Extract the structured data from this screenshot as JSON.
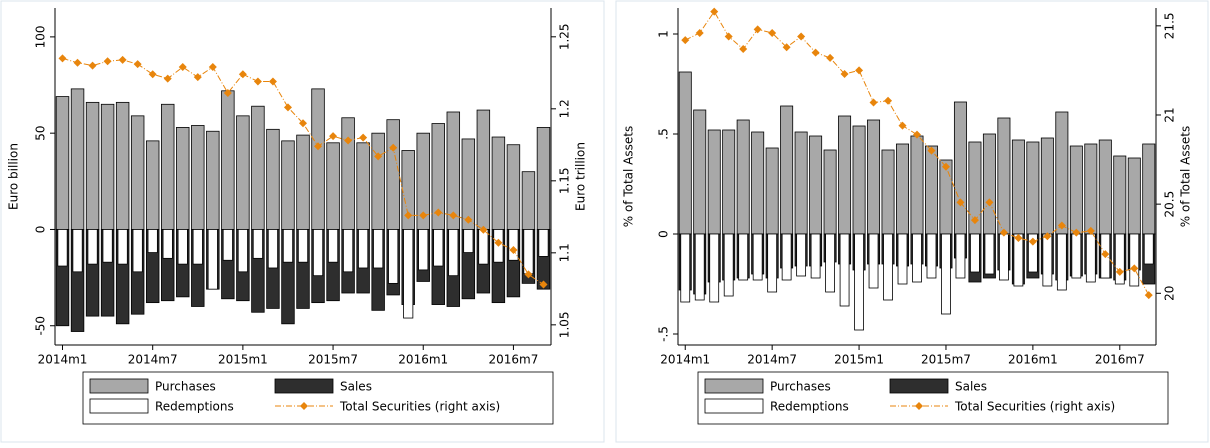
{
  "chart_data": [
    {
      "type": "bar-line",
      "categories": [
        "2014m1",
        null,
        null,
        null,
        null,
        null,
        "2014m7",
        null,
        null,
        null,
        null,
        null,
        "2015m1",
        null,
        null,
        null,
        null,
        null,
        "2015m7",
        null,
        null,
        null,
        null,
        null,
        "2016m1",
        null,
        null,
        null,
        null,
        null,
        "2016m7",
        null,
        null
      ],
      "ylabel": "Euro billion",
      "y2label": "Euro trillion",
      "ylim": [
        -60,
        115
      ],
      "yticks": [
        -50,
        0,
        50,
        100
      ],
      "y2lim": [
        1.036,
        1.27
      ],
      "y2ticks": [
        1.05,
        1.1,
        1.15,
        1.2,
        1.25
      ],
      "series": [
        {
          "name": "Purchases",
          "color": "#a8a8a8",
          "values": [
            69,
            73,
            66,
            65,
            66,
            59,
            46,
            65,
            53,
            54,
            51,
            72,
            59,
            64,
            52,
            46,
            49,
            73,
            45,
            58,
            45,
            50,
            57,
            41,
            50,
            55,
            61,
            47,
            62,
            48,
            44,
            30,
            53
          ]
        },
        {
          "name": "Sales",
          "color": "#2e2e2e",
          "values": [
            -50,
            -53,
            -45,
            -45,
            -49,
            -44,
            -38,
            -37,
            -35,
            -40,
            -31,
            -36,
            -37,
            -43,
            -41,
            -49,
            -41,
            -38,
            -37,
            -33,
            -33,
            -42,
            -34,
            -39,
            -27,
            -39,
            -40,
            -36,
            -33,
            -38,
            -35,
            -28,
            -31
          ]
        },
        {
          "name": "Redemptions",
          "color": "#ffffff",
          "values": [
            -19,
            -22,
            -18,
            -17,
            -18,
            -22,
            -12,
            -15,
            -18,
            -18,
            -31,
            -16,
            -22,
            -15,
            -20,
            -17,
            -17,
            -24,
            -17,
            -22,
            -20,
            -20,
            -28,
            -46,
            -21,
            -19,
            -24,
            -12,
            -18,
            -17,
            -16,
            -23,
            -14
          ]
        },
        {
          "name": "Total Securities (right axis)",
          "color": "#e8850c",
          "axis": "y2",
          "values": [
            1.235,
            1.232,
            1.23,
            1.233,
            1.234,
            1.231,
            1.224,
            1.221,
            1.229,
            1.222,
            1.229,
            1.211,
            1.224,
            1.219,
            1.219,
            1.201,
            1.19,
            1.174,
            1.181,
            1.178,
            1.18,
            1.167,
            1.173,
            1.126,
            1.126,
            1.128,
            1.126,
            1.123,
            1.116,
            1.107,
            1.102,
            1.085,
            1.078
          ]
        }
      ]
    },
    {
      "type": "bar-line",
      "categories": [
        "2014m1",
        null,
        null,
        null,
        null,
        null,
        "2014m7",
        null,
        null,
        null,
        null,
        null,
        "2015m1",
        null,
        null,
        null,
        null,
        null,
        "2015m7",
        null,
        null,
        null,
        null,
        null,
        "2016m1",
        null,
        null,
        null,
        null,
        null,
        "2016m7",
        null,
        null
      ],
      "ylabel": "% of Total Assets",
      "y2label": "% of Total Assets",
      "ylim": [
        -0.555,
        1.13
      ],
      "yticks": [
        {
          "value": -0.5,
          "label": "-.5"
        },
        0,
        {
          "value": 0.5,
          "label": ".5"
        },
        1
      ],
      "y2lim": [
        19.71,
        21.6
      ],
      "y2ticks": [
        20,
        20.5,
        21,
        21.5
      ],
      "series": [
        {
          "name": "Purchases",
          "color": "#a8a8a8",
          "values": [
            0.81,
            0.62,
            0.52,
            0.52,
            0.57,
            0.51,
            0.43,
            0.64,
            0.51,
            0.49,
            0.42,
            0.59,
            0.54,
            0.57,
            0.42,
            0.45,
            0.49,
            0.44,
            0.37,
            0.66,
            0.46,
            0.5,
            0.58,
            0.47,
            0.46,
            0.48,
            0.61,
            0.44,
            0.45,
            0.47,
            0.39,
            0.38,
            0.45
          ]
        },
        {
          "name": "Sales",
          "color": "#2e2e2e",
          "values": [
            -0.28,
            -0.3,
            -0.24,
            -0.23,
            -0.22,
            -0.2,
            -0.22,
            -0.17,
            -0.16,
            -0.16,
            -0.14,
            -0.15,
            -0.18,
            -0.15,
            -0.15,
            -0.16,
            -0.15,
            -0.16,
            -0.17,
            -0.12,
            -0.24,
            -0.22,
            -0.18,
            -0.25,
            -0.22,
            -0.2,
            -0.23,
            -0.21,
            -0.2,
            -0.22,
            -0.23,
            -0.18,
            -0.25
          ]
        },
        {
          "name": "Redemptions",
          "color": "#ffffff",
          "values": [
            -0.34,
            -0.33,
            -0.34,
            -0.31,
            -0.23,
            -0.23,
            -0.29,
            -0.23,
            -0.21,
            -0.22,
            -0.29,
            -0.36,
            -0.48,
            -0.27,
            -0.33,
            -0.25,
            -0.24,
            -0.22,
            -0.4,
            -0.22,
            -0.19,
            -0.2,
            -0.23,
            -0.26,
            -0.19,
            -0.26,
            -0.28,
            -0.22,
            -0.24,
            -0.22,
            -0.25,
            -0.26,
            -0.15
          ]
        },
        {
          "name": "Total Securities (right axis)",
          "color": "#e8850c",
          "axis": "y2",
          "values": [
            21.42,
            21.46,
            21.58,
            21.44,
            21.37,
            21.48,
            21.46,
            21.38,
            21.44,
            21.35,
            21.32,
            21.23,
            21.25,
            21.07,
            21.08,
            20.94,
            20.89,
            20.8,
            20.71,
            20.51,
            20.41,
            20.51,
            20.34,
            20.31,
            20.29,
            20.32,
            20.38,
            20.34,
            20.35,
            20.22,
            20.12,
            20.14,
            19.99
          ]
        }
      ]
    }
  ]
}
